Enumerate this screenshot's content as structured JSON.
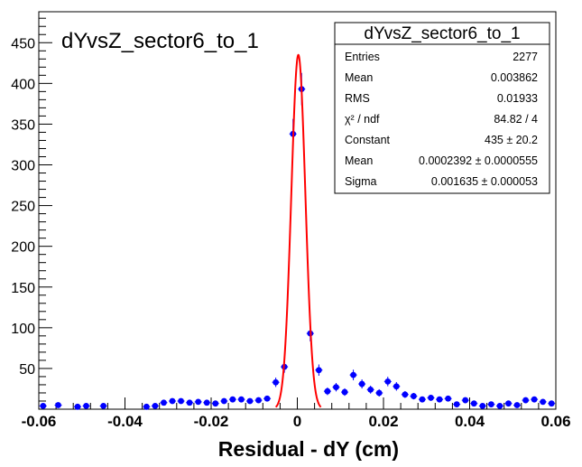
{
  "chart_data": {
    "type": "scatter",
    "title": "dYvsZ_sector6_to_1",
    "xlabel": "Residual - dY (cm)",
    "ylabel": "",
    "xlim": [
      -0.06,
      0.06
    ],
    "ylim": [
      0,
      488
    ],
    "x_ticks": [
      "-0.06",
      "-0.04",
      "-0.02",
      "0",
      "0.02",
      "0.04",
      "0.06"
    ],
    "y_ticks": [
      "50",
      "100",
      "150",
      "200",
      "250",
      "300",
      "350",
      "400",
      "450"
    ],
    "grid": false,
    "series": [
      {
        "name": "",
        "marker_color": "#0000ff",
        "x": [
          -0.059,
          -0.0555,
          -0.051,
          -0.049,
          -0.045,
          -0.035,
          -0.033,
          -0.031,
          -0.029,
          -0.027,
          -0.025,
          -0.023,
          -0.021,
          -0.019,
          -0.017,
          -0.015,
          -0.013,
          -0.011,
          -0.009,
          -0.007,
          -0.005,
          -0.003,
          -0.001,
          0.001,
          0.003,
          0.005,
          0.007,
          0.009,
          0.011,
          0.013,
          0.015,
          0.017,
          0.019,
          0.021,
          0.023,
          0.025,
          0.027,
          0.029,
          0.031,
          0.033,
          0.035,
          0.037,
          0.039,
          0.041,
          0.043,
          0.045,
          0.047,
          0.049,
          0.051,
          0.053,
          0.055,
          0.057,
          0.059
        ],
        "y": [
          4,
          5,
          3,
          4,
          4,
          3,
          4,
          8,
          10,
          10,
          8,
          9,
          8,
          7,
          10,
          12,
          12,
          10,
          11,
          13,
          33,
          52,
          338,
          393,
          93,
          48,
          22,
          27,
          21,
          42,
          31,
          24,
          20,
          34,
          28,
          18,
          16,
          12,
          14,
          12,
          13,
          6,
          11,
          7,
          4,
          6,
          4,
          7,
          5,
          11,
          12,
          9,
          7
        ]
      }
    ],
    "fit": {
      "name": "",
      "function": "gaus",
      "color": "#ff0000",
      "constant": 435,
      "mean": 0.0002392,
      "sigma": 0.001635
    },
    "stats_box": {
      "title": "dYvsZ_sector6_to_1",
      "rows": [
        {
          "label": "Entries",
          "value": "2277"
        },
        {
          "label": "Mean",
          "value": "0.003862"
        },
        {
          "label": "RMS",
          "value": "0.01933"
        },
        {
          "label": "χ² / ndf",
          "value": "84.82 / 4"
        },
        {
          "label": "Constant",
          "value": "435 ± 20.2"
        },
        {
          "label": "Mean",
          "value": "0.0002392 ± 0.0000555"
        },
        {
          "label": "Sigma",
          "value": "0.001635 ± 0.000053"
        }
      ]
    }
  }
}
